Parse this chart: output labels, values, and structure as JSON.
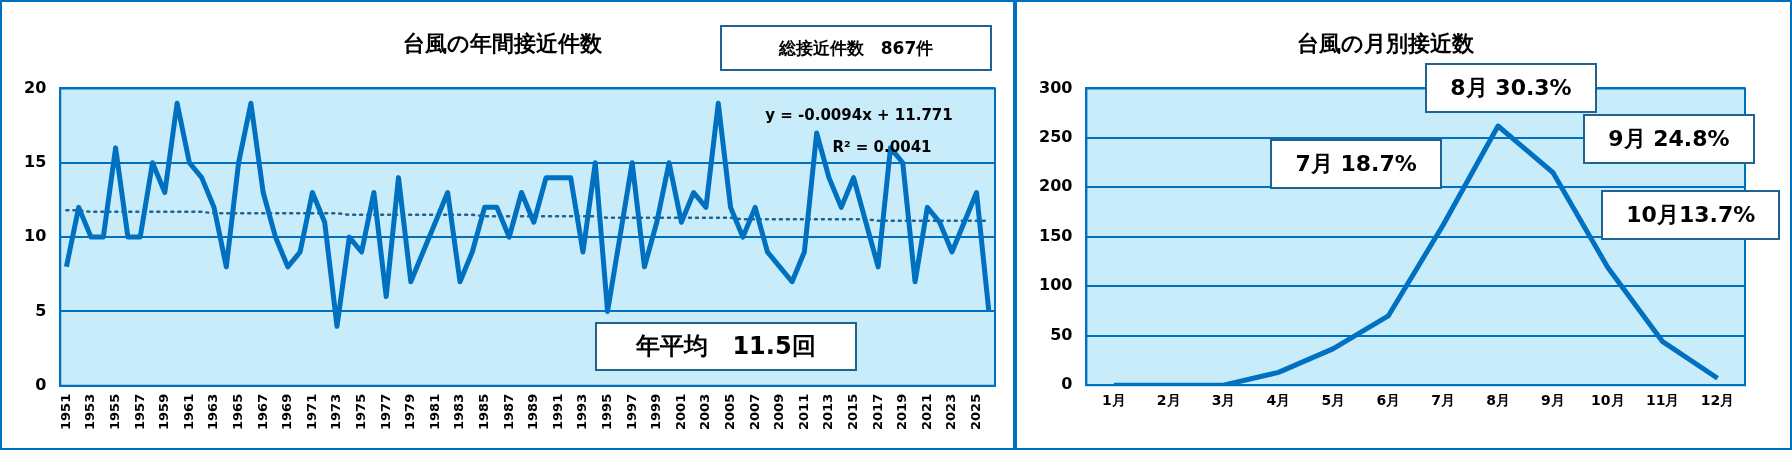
{
  "chart_data": [
    {
      "type": "line",
      "title": "台風の年間接近件数",
      "categories": [
        "1951",
        null,
        "1953",
        null,
        "1955",
        null,
        "1957",
        null,
        "1959",
        null,
        "1961",
        null,
        "1963",
        null,
        "1965",
        null,
        "1967",
        null,
        "1969",
        null,
        "1971",
        null,
        "1973",
        null,
        "1975",
        null,
        "1977",
        null,
        "1979",
        null,
        "1981",
        null,
        "1983",
        null,
        "1985",
        null,
        "1987",
        null,
        "1989",
        null,
        "1991",
        null,
        "1993",
        null,
        "1995",
        null,
        "1997",
        null,
        "1999",
        null,
        "2001",
        null,
        "2003",
        null,
        "2005",
        null,
        "2007",
        null,
        "2009",
        null,
        "2011",
        null,
        "2013",
        null,
        "2015",
        null,
        "2017",
        null,
        "2019",
        null,
        "2021",
        null,
        "2023",
        null,
        "2025",
        null
      ],
      "series": [
        {
          "color": "#0070c0",
          "values": [
            8,
            12,
            10,
            10,
            16,
            10,
            10,
            15,
            13,
            19,
            15,
            14,
            12,
            8,
            15,
            19,
            13,
            10,
            8,
            9,
            13,
            11,
            4,
            10,
            9,
            13,
            6,
            14,
            7,
            9,
            11,
            13,
            7,
            9,
            12,
            12,
            10,
            13,
            11,
            14,
            14,
            14,
            9,
            15,
            5,
            10,
            15,
            8,
            11,
            15,
            11,
            13,
            12,
            19,
            12,
            10,
            12,
            9,
            8,
            7,
            9,
            17,
            14,
            12,
            14,
            11,
            8,
            16,
            15,
            7,
            12,
            11,
            9,
            11,
            13,
            5
          ]
        },
        {
          "type": "line",
          "values": [
            11.8,
            11.8,
            11.7,
            11.7,
            11.7,
            11.7,
            11.7,
            11.7,
            11.7,
            11.7,
            11.7,
            11.7,
            11.6,
            11.6,
            11.6,
            11.6,
            11.6,
            11.6,
            11.6,
            11.6,
            11.6,
            11.6,
            11.6,
            11.5,
            11.5,
            11.5,
            11.5,
            11.5,
            11.5,
            11.5,
            11.5,
            11.5,
            11.5,
            11.5,
            11.4,
            11.4,
            11.4,
            11.4,
            11.4,
            11.4,
            11.4,
            11.4,
            11.4,
            11.4,
            11.3,
            11.3,
            11.3,
            11.3,
            11.3,
            11.3,
            11.3,
            11.3,
            11.3,
            11.3,
            11.3,
            11.2,
            11.2,
            11.2,
            11.2,
            11.2,
            11.2,
            11.2,
            11.2,
            11.2,
            11.2,
            11.2,
            11.1,
            11.1,
            11.1,
            11.1,
            11.1,
            11.1,
            11.1,
            11.1,
            11.1,
            11.1
          ],
          "color": "#1f6391",
          "line_style": "dotted"
        }
      ],
      "ylim": [
        0,
        20
      ],
      "yticks": [
        0,
        5,
        10,
        15,
        20
      ],
      "grid": "y",
      "marker": "none",
      "annotations": [
        "総接近件数　867件",
        "y = -0.0094x + 11.771",
        "R² = 0.0041",
        "年平均　11.5回"
      ]
    },
    {
      "type": "line",
      "title": "台風の月別接近数",
      "categories": [
        "1月",
        "2月",
        "3月",
        "4月",
        "5月",
        "6月",
        "7月",
        "8月",
        "9月",
        "10月",
        "11月",
        "12月"
      ],
      "series": [
        {
          "color": "#0070c0",
          "values": [
            0,
            0,
            0,
            13,
            37,
            70,
            162,
            262,
            215,
            119,
            44,
            7
          ]
        }
      ],
      "ylim": [
        0,
        300
      ],
      "yticks": [
        0,
        50,
        100,
        150,
        200,
        250,
        300
      ],
      "grid": "y",
      "marker": "none",
      "annotations": [
        {
          "text": "7月 18.7%",
          "x": "7月",
          "y": 162
        },
        {
          "text": "8月 30.3%",
          "x": "8月",
          "y": 262
        },
        {
          "text": "9月 24.8%",
          "x": "9月",
          "y": 215
        },
        {
          "text": "10月13.7%",
          "x": "10月",
          "y": 119
        }
      ]
    }
  ]
}
